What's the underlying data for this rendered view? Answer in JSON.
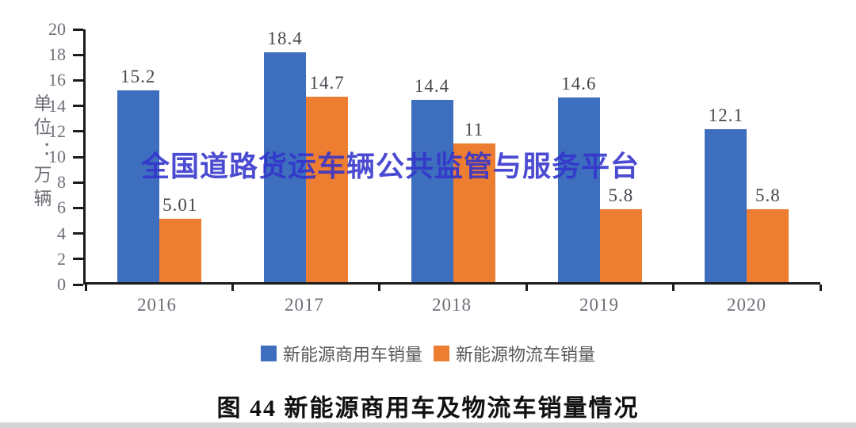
{
  "chart_data": {
    "type": "bar",
    "title": "图 44  新能源商用车及物流车销量情况",
    "unit_label": "单位：万辆",
    "categories": [
      "2016",
      "2017",
      "2018",
      "2019",
      "2020"
    ],
    "series": [
      {
        "name": "新能源商用车销量",
        "color": "#3E6FBF",
        "values": [
          15.2,
          18.4,
          14.4,
          14.6,
          12.1
        ],
        "labels": [
          "15.2",
          "18.4",
          "14.4",
          "14.6",
          "12.1"
        ]
      },
      {
        "name": "新能源物流车销量",
        "color": "#ED7D31",
        "values": [
          5.01,
          14.7,
          11,
          5.8,
          5.8
        ],
        "labels": [
          "5.01",
          "14.7",
          "11",
          "5.8",
          "5.8"
        ]
      }
    ],
    "ylim": [
      0,
      20
    ],
    "ytick_step": 2,
    "grid": false,
    "legend_position": "bottom",
    "axis_color": "#1b1b1b",
    "tick_label_color": "#6e6e78",
    "value_label_color": "#46464c"
  },
  "watermark": {
    "text": "全国道路货运车辆公共监管与服务平台",
    "color": "#3333cc"
  },
  "caption": {
    "text": "图 44  新能源商用车及物流车销量情况"
  }
}
